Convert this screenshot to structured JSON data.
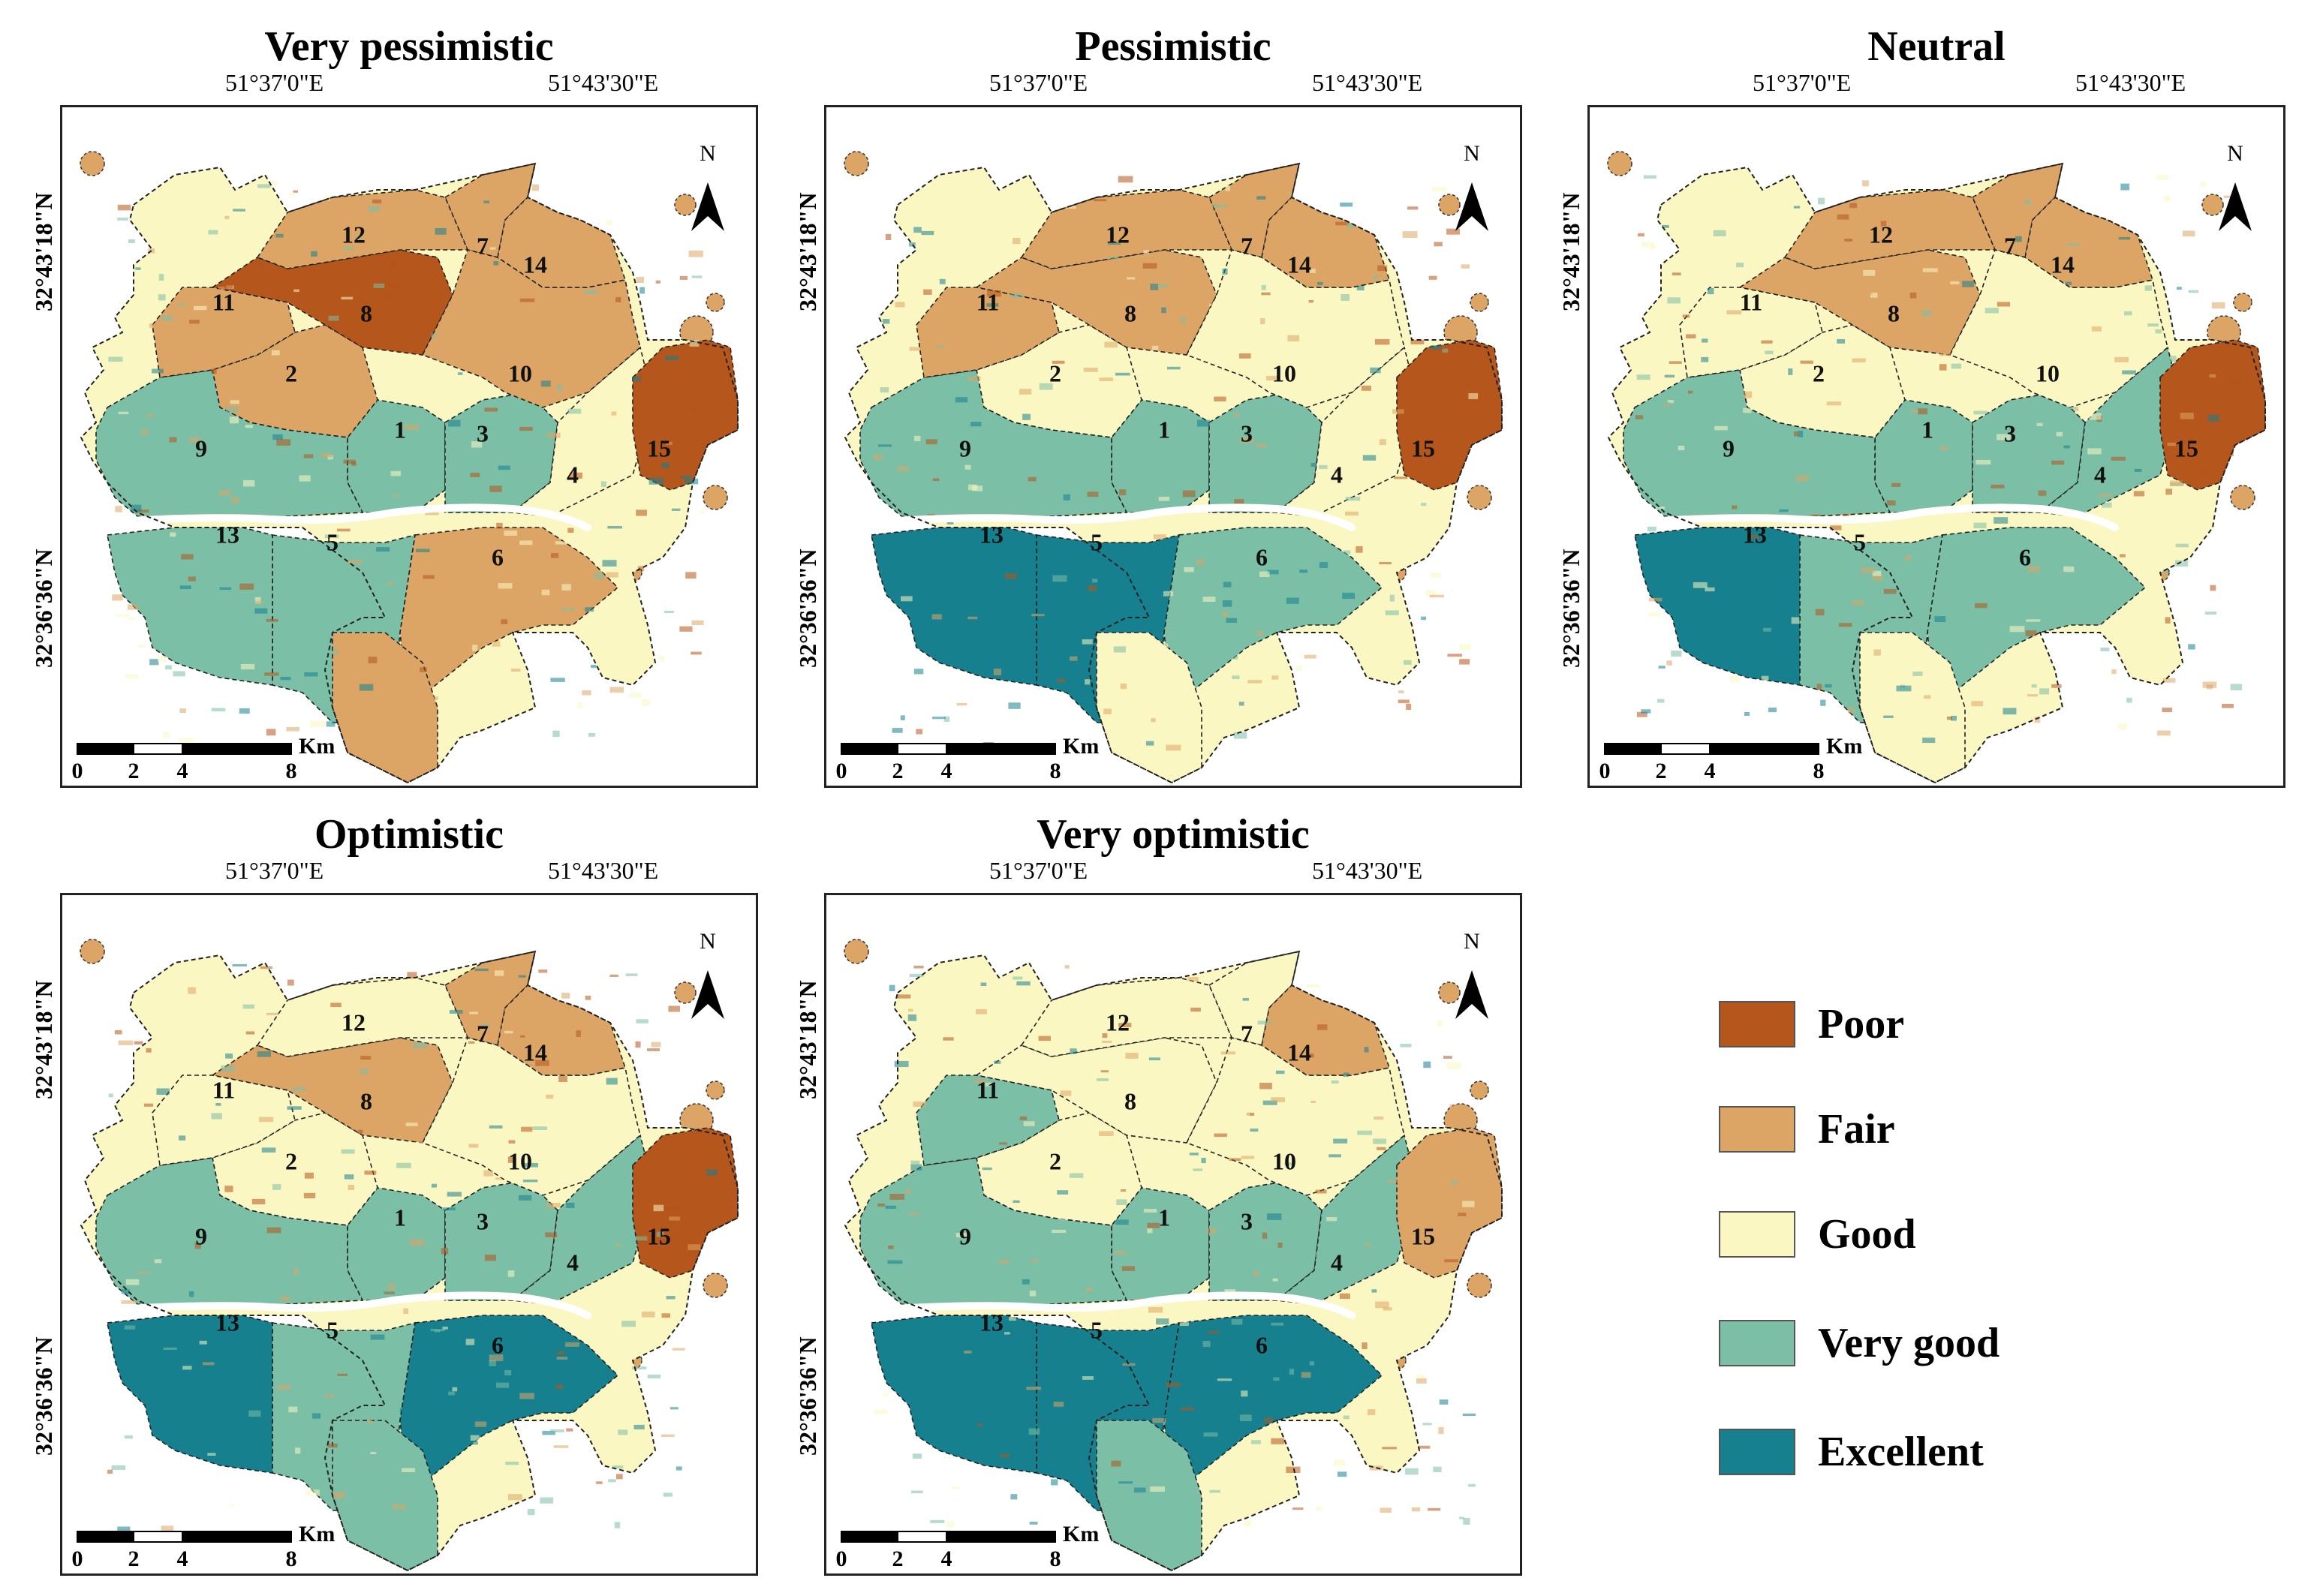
{
  "colors": {
    "poor": "#b5561c",
    "fair": "#dca566",
    "good": "#fbf7c2",
    "very_good": "#7bbfa7",
    "excellent": "#16808f"
  },
  "axis": {
    "lon_left": "51°37'0\"E",
    "lon_right": "51°43'30\"E",
    "lat_top": "32°43'18\"N",
    "lat_bottom": "32°36'36\"N",
    "north": "N"
  },
  "scale": {
    "ticks": [
      "0",
      "2",
      "4",
      "8"
    ],
    "unit": "Km"
  },
  "district_labels": [
    "1",
    "2",
    "3",
    "4",
    "5",
    "6",
    "7",
    "8",
    "9",
    "10",
    "11",
    "12",
    "13",
    "14",
    "15"
  ],
  "panels": [
    {
      "title": "Very pessimistic",
      "zones": {
        "13": "very_good",
        "5": "very_good",
        "6": "fair",
        "1": "very_good",
        "3": "very_good",
        "9": "very_good",
        "4": "good",
        "10": "fair",
        "7": "fair",
        "14": "fair",
        "12": "fair",
        "8": "poor",
        "11": "fair",
        "2": "fair",
        "15": "poor",
        "s": "fair"
      }
    },
    {
      "title": "Pessimistic",
      "zones": {
        "13": "excellent",
        "5": "excellent",
        "6": "very_good",
        "1": "very_good",
        "3": "very_good",
        "9": "very_good",
        "4": "good",
        "10": "good",
        "7": "fair",
        "14": "fair",
        "12": "fair",
        "8": "fair",
        "11": "fair",
        "2": "good",
        "15": "poor",
        "s": "good"
      }
    },
    {
      "title": "Neutral",
      "zones": {
        "13": "excellent",
        "5": "very_good",
        "6": "very_good",
        "1": "very_good",
        "3": "very_good",
        "9": "very_good",
        "4": "very_good",
        "10": "good",
        "7": "fair",
        "14": "fair",
        "12": "fair",
        "8": "fair",
        "11": "good",
        "2": "good",
        "15": "poor",
        "s": "good"
      }
    },
    {
      "title": "Optimistic",
      "zones": {
        "13": "excellent",
        "5": "very_good",
        "6": "excellent",
        "1": "very_good",
        "3": "very_good",
        "9": "very_good",
        "4": "very_good",
        "10": "good",
        "7": "fair",
        "14": "fair",
        "12": "good",
        "8": "fair",
        "11": "good",
        "2": "good",
        "15": "poor",
        "s": "very_good"
      }
    },
    {
      "title": "Very optimistic",
      "zones": {
        "13": "excellent",
        "5": "excellent",
        "6": "excellent",
        "1": "very_good",
        "3": "very_good",
        "9": "very_good",
        "4": "very_good",
        "10": "good",
        "7": "good",
        "14": "fair",
        "12": "good",
        "8": "good",
        "11": "very_good",
        "2": "good",
        "15": "fair",
        "s": "very_good"
      }
    }
  ],
  "legend": [
    {
      "label": "Poor",
      "color": "#b5561c"
    },
    {
      "label": "Fair",
      "color": "#dca566"
    },
    {
      "label": "Good",
      "color": "#fbf7c2"
    },
    {
      "label": "Very good",
      "color": "#7bbfa7"
    },
    {
      "label": "Excellent",
      "color": "#16808f"
    }
  ]
}
